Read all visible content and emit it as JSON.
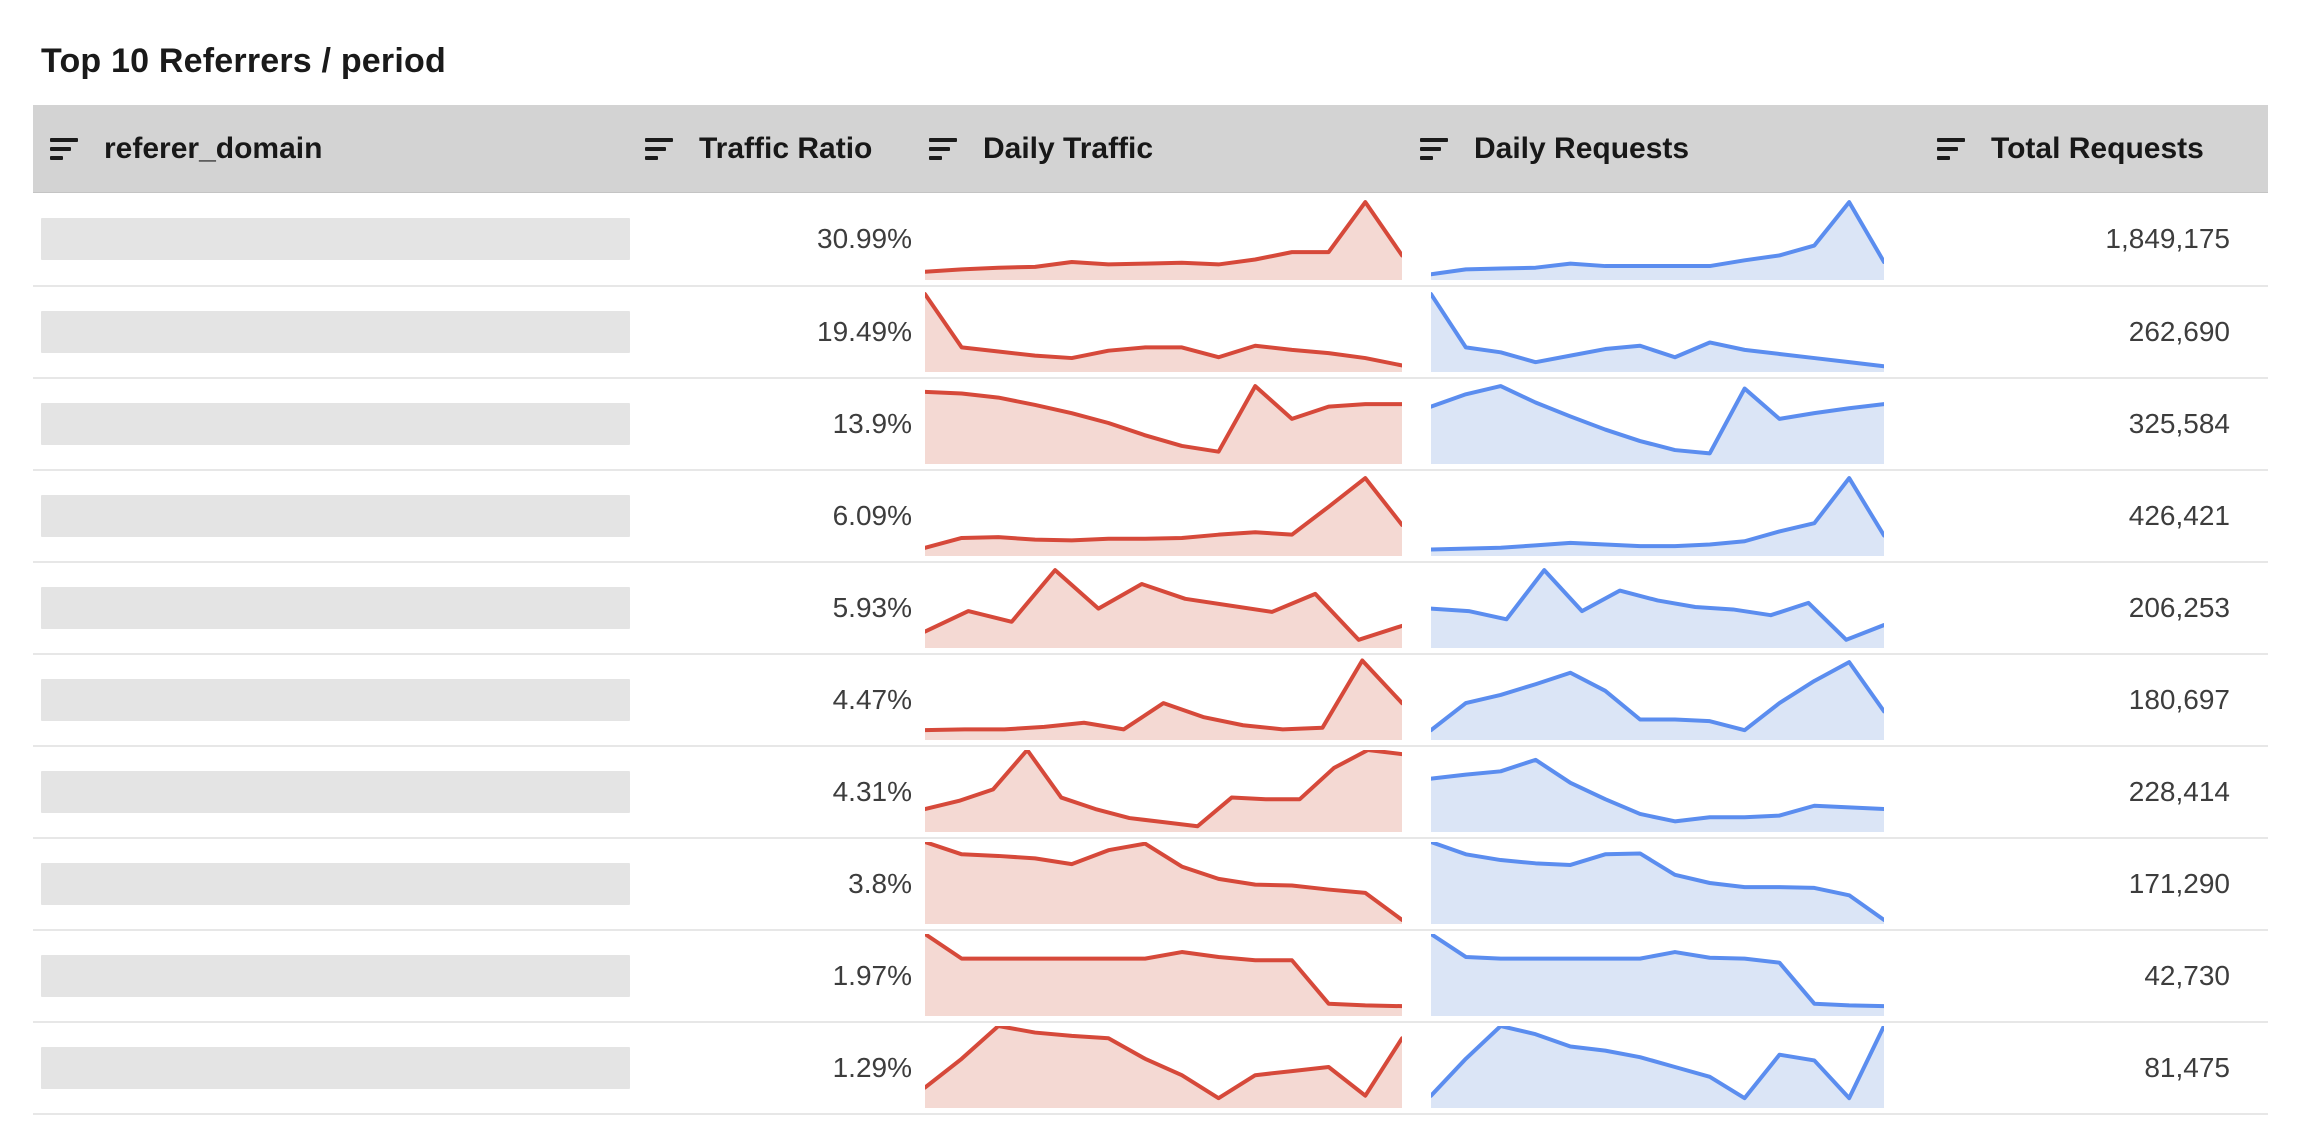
{
  "title": "Top 10 Referrers / period",
  "columns": [
    {
      "label": "referer_domain",
      "icon": "sort-icon"
    },
    {
      "label": "Traffic Ratio",
      "icon": "sort-icon"
    },
    {
      "label": "Daily Traffic",
      "icon": "sort-icon"
    },
    {
      "label": "Daily Requests",
      "icon": "sort-icon"
    },
    {
      "label": "Total Requests",
      "icon": "sort-icon"
    }
  ],
  "colors": {
    "header_bg": "#d3d3d3",
    "row_separator": "#e7e7e7",
    "redacted_bar": "#e4e4e4",
    "traffic_stroke": "#d6493a",
    "traffic_fill": "#f4d9d3",
    "requests_stroke": "#5b8def",
    "requests_fill": "#dbe5f6",
    "value_text": "#3d3d3d",
    "header_text": "#181818"
  },
  "chart_data": {
    "type": "table",
    "title": "Top 10 Referrers / period",
    "columns": [
      "referer_domain",
      "Traffic Ratio",
      "Daily Traffic",
      "Daily Requests",
      "Total Requests"
    ],
    "sparkline_note": "daily_traffic and daily_requests are area sparklines; values are normalized 0-1 estimates read from pixel heights",
    "rows": [
      {
        "referer_domain": "",
        "traffic_ratio": "30.99%",
        "total_requests": "1,849,175",
        "daily_traffic": [
          0.1,
          0.13,
          0.15,
          0.16,
          0.22,
          0.19,
          0.2,
          0.21,
          0.19,
          0.25,
          0.34,
          0.34,
          0.95,
          0.3
        ],
        "daily_requests": [
          0.07,
          0.13,
          0.14,
          0.15,
          0.2,
          0.17,
          0.17,
          0.17,
          0.17,
          0.24,
          0.3,
          0.42,
          0.95,
          0.22
        ]
      },
      {
        "referer_domain": "",
        "traffic_ratio": "19.49%",
        "total_requests": "262,690",
        "daily_traffic": [
          0.95,
          0.3,
          0.25,
          0.2,
          0.17,
          0.26,
          0.3,
          0.3,
          0.18,
          0.32,
          0.27,
          0.23,
          0.17,
          0.08
        ],
        "daily_requests": [
          0.95,
          0.3,
          0.24,
          0.12,
          0.2,
          0.28,
          0.32,
          0.18,
          0.36,
          0.27,
          0.22,
          0.17,
          0.12,
          0.07
        ]
      },
      {
        "referer_domain": "",
        "traffic_ratio": "13.9%",
        "total_requests": "325,584",
        "daily_traffic": [
          0.88,
          0.86,
          0.81,
          0.72,
          0.62,
          0.5,
          0.35,
          0.22,
          0.15,
          0.95,
          0.55,
          0.7,
          0.73,
          0.73
        ],
        "daily_requests": [
          0.7,
          0.85,
          0.95,
          0.75,
          0.58,
          0.42,
          0.28,
          0.17,
          0.13,
          0.92,
          0.55,
          0.62,
          0.68,
          0.73
        ]
      },
      {
        "referer_domain": "",
        "traffic_ratio": "6.09%",
        "total_requests": "426,421",
        "daily_traffic": [
          0.1,
          0.22,
          0.23,
          0.2,
          0.19,
          0.21,
          0.21,
          0.22,
          0.26,
          0.29,
          0.26,
          0.6,
          0.95,
          0.38
        ],
        "daily_requests": [
          0.08,
          0.09,
          0.1,
          0.13,
          0.16,
          0.14,
          0.12,
          0.12,
          0.14,
          0.18,
          0.3,
          0.4,
          0.95,
          0.25
        ]
      },
      {
        "referer_domain": "",
        "traffic_ratio": "5.93%",
        "total_requests": "206,253",
        "daily_traffic": [
          0.2,
          0.45,
          0.32,
          0.95,
          0.48,
          0.78,
          0.6,
          0.52,
          0.44,
          0.66,
          0.1,
          0.27
        ],
        "daily_requests": [
          0.48,
          0.45,
          0.35,
          0.95,
          0.45,
          0.7,
          0.58,
          0.5,
          0.47,
          0.4,
          0.55,
          0.1,
          0.28
        ]
      },
      {
        "referer_domain": "",
        "traffic_ratio": "4.47%",
        "total_requests": "180,697",
        "daily_traffic": [
          0.12,
          0.13,
          0.13,
          0.16,
          0.21,
          0.13,
          0.45,
          0.28,
          0.18,
          0.13,
          0.15,
          0.97,
          0.45
        ],
        "daily_requests": [
          0.12,
          0.45,
          0.55,
          0.68,
          0.82,
          0.6,
          0.25,
          0.25,
          0.23,
          0.12,
          0.45,
          0.72,
          0.95,
          0.35
        ]
      },
      {
        "referer_domain": "",
        "traffic_ratio": "4.31%",
        "total_requests": "228,414",
        "daily_traffic": [
          0.28,
          0.38,
          0.52,
          1.0,
          0.42,
          0.28,
          0.17,
          0.12,
          0.07,
          0.42,
          0.4,
          0.4,
          0.78,
          1.0,
          0.95
        ],
        "daily_requests": [
          0.65,
          0.7,
          0.74,
          0.88,
          0.6,
          0.4,
          0.22,
          0.13,
          0.18,
          0.18,
          0.2,
          0.32,
          0.3,
          0.28
        ]
      },
      {
        "referer_domain": "",
        "traffic_ratio": "3.8%",
        "total_requests": "171,290",
        "daily_traffic": [
          1.0,
          0.85,
          0.83,
          0.8,
          0.73,
          0.9,
          0.98,
          0.7,
          0.55,
          0.48,
          0.47,
          0.42,
          0.38,
          0.05
        ],
        "daily_requests": [
          1.0,
          0.85,
          0.78,
          0.74,
          0.72,
          0.85,
          0.86,
          0.6,
          0.5,
          0.45,
          0.45,
          0.44,
          0.35,
          0.05
        ]
      },
      {
        "referer_domain": "",
        "traffic_ratio": "1.97%",
        "total_requests": "42,730",
        "daily_traffic": [
          1.0,
          0.7,
          0.7,
          0.7,
          0.7,
          0.7,
          0.7,
          0.78,
          0.72,
          0.68,
          0.68,
          0.15,
          0.13,
          0.12
        ],
        "daily_requests": [
          1.0,
          0.72,
          0.7,
          0.7,
          0.7,
          0.7,
          0.7,
          0.78,
          0.71,
          0.7,
          0.65,
          0.15,
          0.13,
          0.12
        ]
      },
      {
        "referer_domain": "",
        "traffic_ratio": "1.29%",
        "total_requests": "81,475",
        "daily_traffic": [
          0.25,
          0.6,
          1.0,
          0.92,
          0.88,
          0.85,
          0.6,
          0.4,
          0.12,
          0.4,
          0.45,
          0.5,
          0.15,
          0.85
        ],
        "daily_requests": [
          0.15,
          0.6,
          1.0,
          0.9,
          0.75,
          0.7,
          0.62,
          0.5,
          0.38,
          0.12,
          0.65,
          0.58,
          0.12,
          1.0
        ]
      }
    ]
  }
}
